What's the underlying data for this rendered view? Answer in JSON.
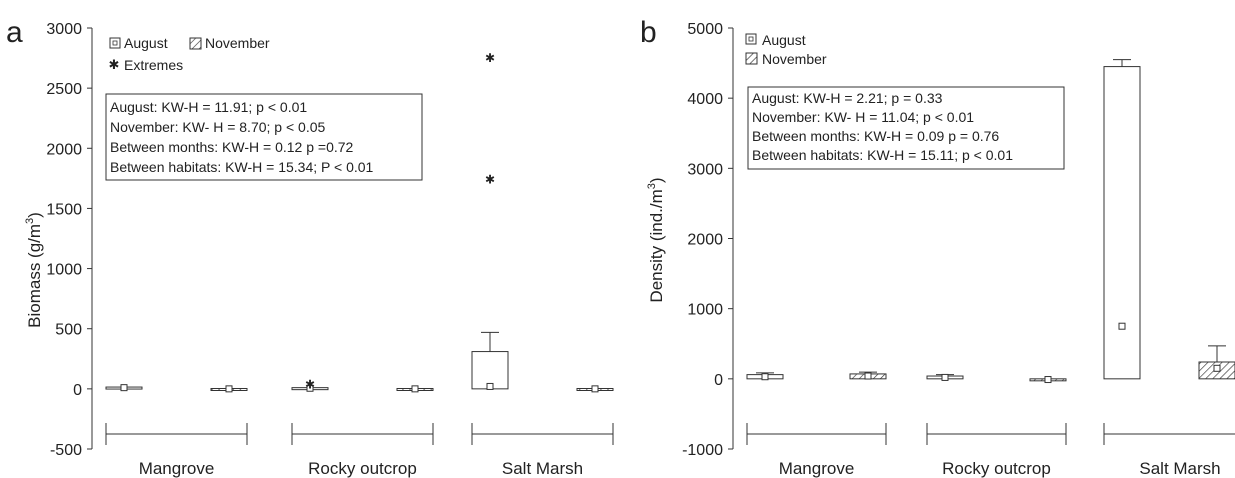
{
  "chart_data": [
    {
      "panel_label": "a",
      "type": "box",
      "ylabel": "Biomass (g/m",
      "ylabel_sup": "3",
      "ylabel_end": ")",
      "ylim": [
        -500,
        3000
      ],
      "yticks": [
        "-500",
        "0",
        "500",
        "1000",
        "1500",
        "2000",
        "2500",
        "3000"
      ],
      "categories": [
        "Mangrove",
        "Rocky outcrop",
        "Salt Marsh"
      ],
      "legend": {
        "placement": "top-left",
        "items": [
          {
            "label": "August",
            "symbol": "box-open"
          },
          {
            "label": "November",
            "symbol": "box-hatched"
          },
          {
            "label": "Extremes",
            "symbol": "asterisk"
          }
        ]
      },
      "stats_lines": [
        "August: KW-H = 11.91; p < 0.01",
        "November: KW- H = 8.70; p < 0.05",
        "Between months: KW-H = 0.12 p =0.72",
        "Between habitats: KW-H = 15.34; P < 0.01"
      ],
      "boxes": [
        {
          "category": "Mangrove",
          "month": "August",
          "median": 10,
          "q1": 0,
          "q3": 15,
          "min": 0,
          "max": 18,
          "hatched": false
        },
        {
          "category": "Mangrove",
          "month": "November",
          "median": 0,
          "q1": -3,
          "q3": 3,
          "min": -3,
          "max": 3,
          "hatched": true
        },
        {
          "category": "Rocky outcrop",
          "month": "August",
          "median": 5,
          "q1": 0,
          "q3": 10,
          "min": 0,
          "max": 10,
          "hatched": false
        },
        {
          "category": "Rocky outcrop",
          "month": "November",
          "median": 0,
          "q1": -3,
          "q3": 3,
          "min": -3,
          "max": 3,
          "hatched": true
        },
        {
          "category": "Salt Marsh",
          "month": "August",
          "median": 20,
          "q1": 0,
          "q3": 310,
          "min": 0,
          "max": 470,
          "hatched": false
        },
        {
          "category": "Salt Marsh",
          "month": "November",
          "median": 0,
          "q1": -3,
          "q3": 3,
          "min": -3,
          "max": 3,
          "hatched": true
        }
      ],
      "extremes": [
        {
          "category": "Rocky outcrop",
          "month": "August",
          "value": 45
        },
        {
          "category": "Salt Marsh",
          "month": "August",
          "value": 1750
        },
        {
          "category": "Salt Marsh",
          "month": "August",
          "value": 2760
        }
      ]
    },
    {
      "panel_label": "b",
      "type": "box",
      "ylabel": "Density (ind./m",
      "ylabel_sup": "3",
      "ylabel_end": ")",
      "ylim": [
        -1000,
        5000
      ],
      "yticks": [
        "-1000",
        "0",
        "1000",
        "2000",
        "3000",
        "4000",
        "5000"
      ],
      "categories": [
        "Mangrove",
        "Rocky outcrop",
        "Salt Marsh"
      ],
      "legend": {
        "placement": "top-left",
        "items": [
          {
            "label": "August",
            "symbol": "box-open"
          },
          {
            "label": "November",
            "symbol": "box-hatched"
          }
        ]
      },
      "stats_lines": [
        "August: KW-H = 2.21; p = 0.33",
        "November: KW- H = 11.04; p < 0.01",
        "Between months: KW-H = 0.09 p = 0.76",
        "Between habitats: KW-H = 15.11; p < 0.01"
      ],
      "boxes": [
        {
          "category": "Mangrove",
          "month": "August",
          "median": 30,
          "q1": 0,
          "q3": 60,
          "min": 0,
          "max": 85,
          "hatched": false
        },
        {
          "category": "Mangrove",
          "month": "November",
          "median": 40,
          "q1": 0,
          "q3": 70,
          "min": 0,
          "max": 95,
          "hatched": true
        },
        {
          "category": "Rocky outcrop",
          "month": "August",
          "median": 20,
          "q1": 0,
          "q3": 40,
          "min": 0,
          "max": 60,
          "hatched": false
        },
        {
          "category": "Rocky outcrop",
          "month": "November",
          "median": -10,
          "q1": -20,
          "q3": 0,
          "min": -20,
          "max": 0,
          "hatched": true
        },
        {
          "category": "Salt Marsh",
          "month": "August",
          "median": 750,
          "q1": 0,
          "q3": 4450,
          "min": 0,
          "max": 4550,
          "hatched": false
        },
        {
          "category": "Salt Marsh",
          "month": "November",
          "median": 150,
          "q1": 0,
          "q3": 240,
          "min": 0,
          "max": 470,
          "hatched": true
        }
      ],
      "extremes": []
    }
  ]
}
